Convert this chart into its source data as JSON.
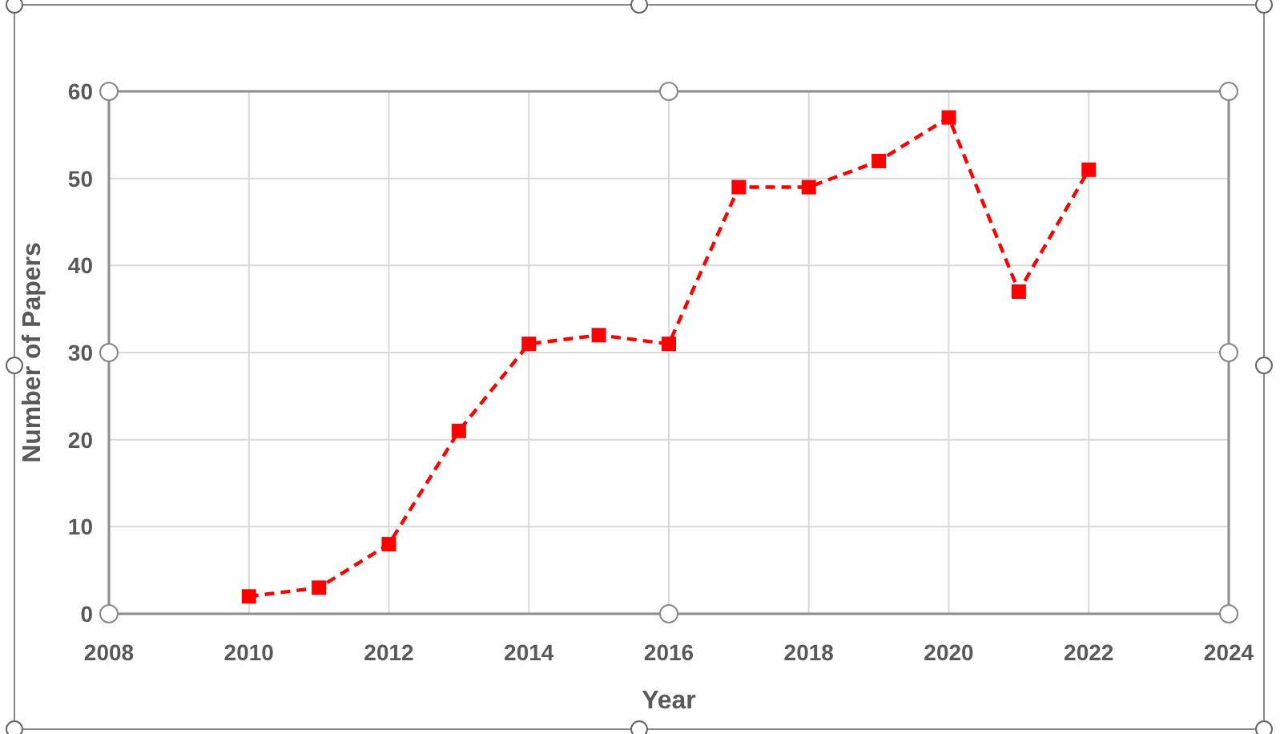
{
  "chart_data": {
    "type": "line",
    "xlabel": "Year",
    "ylabel": "Number of Papers",
    "x": [
      2010,
      2011,
      2012,
      2013,
      2014,
      2015,
      2016,
      2017,
      2018,
      2019,
      2020,
      2021,
      2022
    ],
    "series": [
      {
        "color": "#ff0000",
        "values": [
          2,
          3,
          8,
          21,
          31,
          32,
          31,
          49,
          49,
          52,
          57,
          37,
          51
        ]
      }
    ],
    "xlim": [
      2008,
      2024
    ],
    "xticks": [
      2008,
      2010,
      2012,
      2014,
      2016,
      2018,
      2020,
      2022,
      2024
    ],
    "ylim": [
      0,
      60
    ],
    "yticks": [
      0,
      10,
      20,
      30,
      40,
      50,
      60
    ],
    "grid": true,
    "marker": "square",
    "line_style": "dashed"
  }
}
